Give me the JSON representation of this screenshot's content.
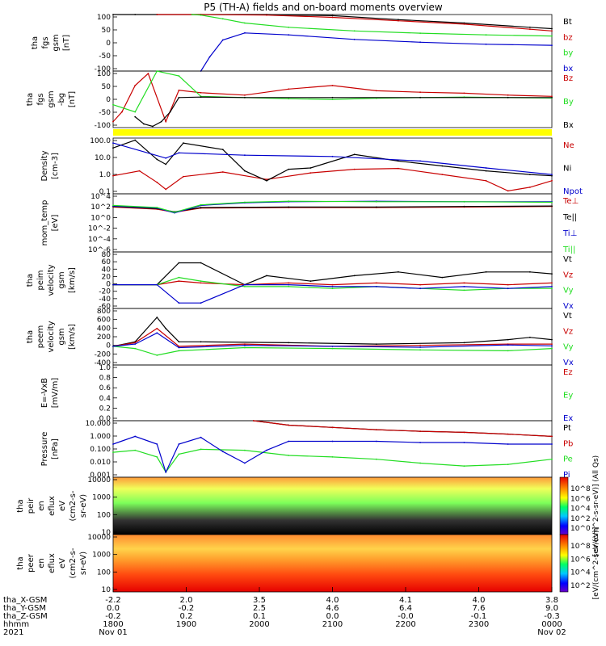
{
  "title": "P5 (TH-A) fields and on-board moments overview",
  "colors": {
    "black": "#000000",
    "red": "#c80000",
    "green": "#22dd22",
    "blue": "#0000cc",
    "yellow": "#ffff00",
    "light_green": "#88dd88"
  },
  "chart_data": [
    {
      "id": "fgs",
      "type": "line",
      "ylabel_lines": [
        "tha",
        "fgs",
        "gsm",
        "[nT]"
      ],
      "yticks": [
        "100",
        "50",
        "0",
        "-50",
        "-100"
      ],
      "ylim": [
        -100,
        100
      ],
      "series": [
        {
          "name": "Bt",
          "color": "black",
          "x": [
            0.0,
            0.05,
            0.1,
            0.2,
            0.35,
            0.5,
            0.65,
            0.8,
            0.95,
            1.0
          ],
          "y": [
            100,
            100,
            100,
            100,
            100,
            96,
            82,
            70,
            55,
            50
          ]
        },
        {
          "name": "bz",
          "color": "red",
          "x": [
            0.1,
            0.2,
            0.35,
            0.5,
            0.65,
            0.8,
            0.95,
            1.0
          ],
          "y": [
            100,
            100,
            98,
            90,
            78,
            66,
            48,
            42
          ]
        },
        {
          "name": "by",
          "color": "green",
          "x": [
            0.18,
            0.2,
            0.25,
            0.3,
            0.4,
            0.55,
            0.7,
            0.85,
            1.0
          ],
          "y": [
            100,
            98,
            85,
            70,
            55,
            42,
            34,
            28,
            24
          ]
        },
        {
          "name": "bx",
          "color": "blue",
          "x": [
            0.2,
            0.22,
            0.25,
            0.3,
            0.4,
            0.55,
            0.7,
            0.85,
            1.0
          ],
          "y": [
            -100,
            -50,
            10,
            35,
            28,
            12,
            2,
            -5,
            -9
          ]
        }
      ]
    },
    {
      "id": "fgs_detrended",
      "type": "line",
      "ylabel_lines": [
        "tha",
        "fgs",
        "gsm",
        "-bg",
        "[nT]"
      ],
      "yticks": [
        "100",
        "50",
        "0",
        "-50",
        "-100"
      ],
      "ylim": [
        -125,
        110
      ],
      "series": [
        {
          "name": "Bz",
          "color": "red",
          "x": [
            0.0,
            0.02,
            0.05,
            0.08,
            0.12,
            0.15,
            0.2,
            0.3,
            0.4,
            0.5,
            0.6,
            0.7,
            0.8,
            0.9,
            1.0
          ],
          "y": [
            -100,
            -60,
            50,
            100,
            -100,
            30,
            20,
            10,
            35,
            50,
            28,
            22,
            18,
            10,
            5
          ]
        },
        {
          "name": "By",
          "color": "green",
          "x": [
            0.0,
            0.05,
            0.1,
            0.15,
            0.2,
            0.3,
            0.4,
            0.5,
            0.6,
            0.7,
            0.8,
            0.9,
            1.0
          ],
          "y": [
            -30,
            -60,
            110,
            90,
            5,
            0,
            -5,
            -8,
            -3,
            0,
            2,
            0,
            -2
          ]
        },
        {
          "name": "Bx",
          "color": "black",
          "x": [
            0.05,
            0.07,
            0.09,
            0.11,
            0.13,
            0.15,
            0.2,
            0.3,
            0.5,
            0.7,
            0.9,
            1.0
          ],
          "y": [
            -80,
            -110,
            -120,
            -100,
            -60,
            0,
            2,
            0,
            0,
            0,
            0,
            0
          ]
        }
      ]
    },
    {
      "id": "density",
      "type": "line",
      "scale": "log",
      "ylabel_lines": [
        "Density",
        "[cm-3]"
      ],
      "yticks": [
        "100.0",
        "10.0",
        "1.0",
        "0.1"
      ],
      "ylim": [
        0.08,
        200
      ],
      "series": [
        {
          "name": "Ne",
          "color": "red",
          "x": [
            0.0,
            0.06,
            0.1,
            0.12,
            0.16,
            0.25,
            0.35,
            0.45,
            0.55,
            0.65,
            0.75,
            0.85,
            0.9,
            0.95,
            1.0
          ],
          "y": [
            1.0,
            2.0,
            0.4,
            0.15,
            0.9,
            1.7,
            0.6,
            1.5,
            2.5,
            2.8,
            1.2,
            0.5,
            0.12,
            0.2,
            0.5
          ]
        },
        {
          "name": "Ni",
          "color": "black",
          "x": [
            0.0,
            0.05,
            0.1,
            0.12,
            0.16,
            0.25,
            0.3,
            0.35,
            0.4,
            0.45,
            0.55,
            0.65,
            0.75,
            0.85,
            0.95,
            1.0
          ],
          "y": [
            50,
            150,
            10,
            5,
            100,
            40,
            2,
            0.5,
            2.5,
            3,
            20,
            8,
            4,
            2,
            1.2,
            1.0
          ]
        },
        {
          "name": "Npot",
          "color": "blue",
          "x": [
            0.0,
            0.12,
            0.15,
            0.3,
            0.5,
            0.7,
            0.85,
            1.0
          ],
          "y": [
            100,
            12,
            25,
            18,
            15,
            8,
            3,
            1.2
          ]
        }
      ]
    },
    {
      "id": "mom_temp",
      "type": "line",
      "scale": "log",
      "ylabel_lines": [
        "mom_temp",
        "[eV]"
      ],
      "yticks": [
        "10^4",
        "10^2",
        "10^0",
        "10^-2",
        "10^-4",
        "10^-6"
      ],
      "ylim": [
        -6.5,
        4.5
      ],
      "series": [
        {
          "name": "Te⊥",
          "color": "red",
          "x": [
            0.0,
            0.1,
            0.14,
            0.2,
            0.4,
            0.6,
            0.8,
            1.0
          ],
          "y": [
            2.0,
            1.6,
            1.0,
            1.8,
            1.9,
            1.9,
            2.0,
            2.1
          ]
        },
        {
          "name": "Te||",
          "color": "black",
          "x": [
            0.0,
            0.1,
            0.14,
            0.2,
            0.4,
            0.6,
            0.8,
            1.0
          ],
          "y": [
            2.1,
            1.7,
            1.1,
            1.9,
            2.0,
            2.0,
            2.1,
            2.2
          ]
        },
        {
          "name": "Ti⊥",
          "color": "blue",
          "x": [
            0.0,
            0.1,
            0.14,
            0.2,
            0.3,
            0.4,
            0.6,
            0.8,
            1.0
          ],
          "y": [
            2.2,
            1.8,
            0.9,
            2.3,
            2.8,
            3.0,
            3.1,
            3.0,
            3.0
          ]
        },
        {
          "name": "Ti||",
          "color": "green",
          "x": [
            0.0,
            0.1,
            0.14,
            0.2,
            0.3,
            0.4,
            0.6,
            0.8,
            1.0
          ],
          "y": [
            2.3,
            1.9,
            1.0,
            2.4,
            2.9,
            3.1,
            3.0,
            3.0,
            2.9
          ]
        }
      ]
    },
    {
      "id": "ion_velocity",
      "type": "line",
      "ylabel_lines": [
        "tha",
        "peim",
        "velocity",
        "gsm",
        "[km/s]"
      ],
      "yticks": [
        "80",
        "60",
        "40",
        "20",
        "0",
        "-20",
        "-40",
        "-60"
      ],
      "ylim": [
        -65,
        90
      ],
      "series": [
        {
          "name": "Vt",
          "color": "black",
          "x": [
            0.0,
            0.1,
            0.15,
            0.2,
            0.3,
            0.35,
            0.45,
            0.55,
            0.65,
            0.75,
            0.85,
            0.95,
            1.0
          ],
          "y": [
            0,
            0,
            60,
            60,
            0,
            25,
            10,
            25,
            35,
            20,
            35,
            35,
            30
          ]
        },
        {
          "name": "Vz",
          "color": "red",
          "x": [
            0.0,
            0.1,
            0.15,
            0.2,
            0.3,
            0.4,
            0.5,
            0.6,
            0.7,
            0.8,
            0.9,
            1.0
          ],
          "y": [
            0,
            0,
            10,
            5,
            0,
            5,
            0,
            5,
            0,
            5,
            0,
            5
          ]
        },
        {
          "name": "Vy",
          "color": "green",
          "x": [
            0.0,
            0.1,
            0.15,
            0.2,
            0.3,
            0.4,
            0.5,
            0.6,
            0.7,
            0.8,
            0.9,
            1.0
          ],
          "y": [
            0,
            0,
            20,
            10,
            -5,
            -5,
            -10,
            -5,
            -10,
            -15,
            -10,
            -10
          ]
        },
        {
          "name": "Vx",
          "color": "blue",
          "x": [
            0.0,
            0.1,
            0.15,
            0.2,
            0.3,
            0.4,
            0.5,
            0.6,
            0.7,
            0.8,
            0.9,
            1.0
          ],
          "y": [
            0,
            0,
            -50,
            -50,
            0,
            0,
            -5,
            -5,
            -10,
            -5,
            -10,
            -5
          ]
        }
      ]
    },
    {
      "id": "electron_velocity",
      "type": "line",
      "ylabel_lines": [
        "tha",
        "peem",
        "velocity",
        "gsm",
        "[km/s]"
      ],
      "yticks": [
        "800",
        "600",
        "400",
        "200",
        "0",
        "-200",
        "-400"
      ],
      "ylim": [
        -420,
        850
      ],
      "series": [
        {
          "name": "Vt",
          "color": "black",
          "x": [
            0.0,
            0.05,
            0.1,
            0.12,
            0.15,
            0.2,
            0.4,
            0.6,
            0.8,
            0.9,
            0.95,
            1.0
          ],
          "y": [
            0,
            100,
            650,
            400,
            100,
            100,
            80,
            50,
            80,
            150,
            200,
            150
          ]
        },
        {
          "name": "Vz",
          "color": "red",
          "x": [
            0.0,
            0.05,
            0.1,
            0.15,
            0.3,
            0.5,
            0.7,
            0.9,
            1.0
          ],
          "y": [
            0,
            80,
            400,
            0,
            50,
            0,
            20,
            50,
            50
          ]
        },
        {
          "name": "Vy",
          "color": "green",
          "x": [
            0.0,
            0.05,
            0.1,
            0.15,
            0.3,
            0.5,
            0.7,
            0.9,
            1.0
          ],
          "y": [
            0,
            -50,
            -200,
            -100,
            -30,
            -50,
            -80,
            -100,
            -50
          ]
        },
        {
          "name": "Vx",
          "color": "blue",
          "x": [
            0.0,
            0.05,
            0.1,
            0.15,
            0.3,
            0.5,
            0.7,
            0.9,
            1.0
          ],
          "y": [
            0,
            50,
            300,
            -30,
            20,
            0,
            -20,
            30,
            10
          ]
        }
      ]
    },
    {
      "id": "efield",
      "type": "line",
      "ylabel_lines": [
        "E=-VxB",
        "[mV/m]"
      ],
      "yticks": [
        "1.0",
        "0.8",
        "0.6",
        "0.4",
        "0.2",
        "0.0"
      ],
      "ylim": [
        0,
        1.0
      ],
      "series": [
        {
          "name": "Ez",
          "color": "red",
          "x": [],
          "y": []
        },
        {
          "name": "Ey",
          "color": "green",
          "x": [],
          "y": []
        },
        {
          "name": "Ex",
          "color": "blue",
          "x": [],
          "y": []
        }
      ]
    },
    {
      "id": "pressure",
      "type": "line",
      "scale": "log",
      "ylabel_lines": [
        "Pressure",
        "[nPa]"
      ],
      "yticks": [
        "10.000",
        "1.000",
        "0.100",
        "0.010",
        "0.001"
      ],
      "ylim": [
        0.0008,
        20
      ],
      "series": [
        {
          "name": "Pt",
          "color": "black",
          "x": [
            0.32,
            0.4,
            0.5,
            0.6,
            0.7,
            0.8,
            0.9,
            1.0
          ],
          "y": [
            20,
            9,
            6,
            4,
            3,
            2.5,
            1.8,
            1.2
          ]
        },
        {
          "name": "Pb",
          "color": "red",
          "x": [
            0.32,
            0.4,
            0.5,
            0.6,
            0.7,
            0.8,
            0.9,
            1.0
          ],
          "y": [
            20,
            9,
            6,
            4,
            3,
            2.5,
            1.8,
            1.2
          ]
        },
        {
          "name": "Pe",
          "color": "green",
          "x": [
            0.0,
            0.05,
            0.1,
            0.12,
            0.15,
            0.2,
            0.3,
            0.4,
            0.5,
            0.6,
            0.7,
            0.8,
            0.9,
            1.0
          ],
          "y": [
            0.07,
            0.1,
            0.03,
            0.002,
            0.05,
            0.12,
            0.1,
            0.04,
            0.03,
            0.02,
            0.01,
            0.006,
            0.008,
            0.02
          ]
        },
        {
          "name": "Pi",
          "color": "blue",
          "x": [
            0.0,
            0.05,
            0.1,
            0.12,
            0.15,
            0.2,
            0.25,
            0.3,
            0.35,
            0.4,
            0.5,
            0.6,
            0.7,
            0.8,
            0.9,
            1.0
          ],
          "y": [
            0.3,
            1.2,
            0.3,
            0.002,
            0.3,
            1.0,
            0.08,
            0.01,
            0.1,
            0.5,
            0.5,
            0.5,
            0.4,
            0.4,
            0.3,
            0.3
          ]
        }
      ]
    },
    {
      "id": "ion_spectrogram",
      "type": "heatmap",
      "ylabel_lines": [
        "tha",
        "peir",
        "en",
        "eflux",
        "eV",
        "(cm2-s-",
        "sr-eV)"
      ],
      "yticks": [
        "10000",
        "1000",
        "100",
        "10"
      ],
      "colorbar": {
        "label": "[eV/(cm^2-s-sr-eV)] (All Qs)",
        "ticks": [
          "10^8",
          "10^6",
          "10^4",
          "10^2",
          "10^0"
        ]
      }
    },
    {
      "id": "electron_spectrogram",
      "type": "heatmap",
      "ylabel_lines": [
        "tha",
        "peer",
        "en",
        "eflux",
        "eV",
        "(cm2-s-",
        "sr-eV)"
      ],
      "yticks": [
        "10000",
        "1000",
        "100",
        "10"
      ],
      "colorbar": {
        "label": "[eV/(cm^2-s-sr-eV)]",
        "ticks": [
          "10^8",
          "10^6",
          "10^4",
          "10^2"
        ]
      }
    }
  ],
  "xaxis": {
    "rows": [
      {
        "label": "tha_X-GSM",
        "values": [
          "-2.2",
          "2.0",
          "3.5",
          "4.0",
          "4.1",
          "4.0",
          "3.8"
        ]
      },
      {
        "label": "tha_Y-GSM",
        "values": [
          "0.0",
          "-0.2",
          "2.5",
          "4.6",
          "6.4",
          "7.6",
          "9.0"
        ]
      },
      {
        "label": "tha_Z-GSM",
        "values": [
          "-0.2",
          "0.2",
          "0.1",
          "0.0",
          "-0.0",
          "-0.1",
          "-0.3"
        ]
      },
      {
        "label": "hhmm",
        "values": [
          "1800",
          "1900",
          "2000",
          "2100",
          "2200",
          "2300",
          "0000"
        ]
      },
      {
        "label": "2021",
        "values": [
          "Nov 01",
          "",
          "",
          "",
          "",
          "",
          "Nov 02"
        ]
      }
    ]
  }
}
